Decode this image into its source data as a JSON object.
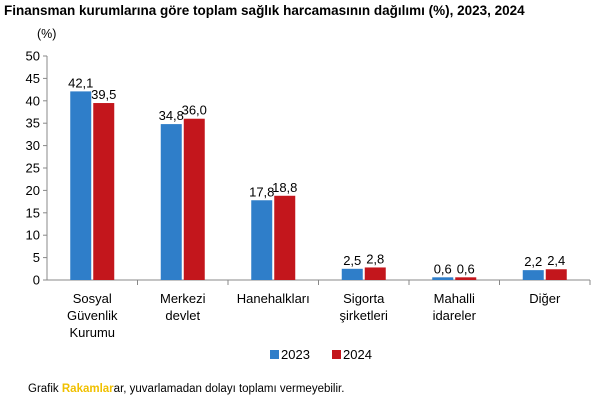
{
  "chart_data": {
    "type": "bar",
    "title": "Finansman kurumlarına göre toplam sağlık harcamasının dağılımı (%), 2023, 2024",
    "ylabel": "(%)",
    "xlabel": "",
    "ylim": [
      0,
      50
    ],
    "yticks": [
      0,
      5,
      10,
      15,
      20,
      25,
      30,
      35,
      40,
      45,
      50
    ],
    "grid": false,
    "legend_position": "bottom-center",
    "categories": [
      [
        "Sosyal",
        "Güvenlik",
        "Kurumu"
      ],
      [
        "Merkezi",
        "devlet"
      ],
      [
        "Hanehalkları"
      ],
      [
        "Sigorta",
        "şirketleri"
      ],
      [
        "Mahalli",
        "idareler"
      ],
      [
        "Diğer"
      ]
    ],
    "series": [
      {
        "name": "2023",
        "color": "#2f7ec9",
        "values": [
          42.1,
          34.8,
          17.8,
          2.5,
          0.6,
          2.2
        ],
        "labels": [
          "42,1",
          "34,8",
          "17,8",
          "2,5",
          "0,6",
          "2,2"
        ]
      },
      {
        "name": "2024",
        "color": "#c3161c",
        "values": [
          39.5,
          36.0,
          18.8,
          2.8,
          0.6,
          2.4
        ],
        "labels": [
          "39,5",
          "36,0",
          "18,8",
          "2,8",
          "0,6",
          "2,4"
        ]
      }
    ]
  },
  "footnote": {
    "prefix": "Grafik",
    "logo_text": "Rakamlar",
    "text": "ar, yuvarlamadan dolayı toplamı vermeyebilir."
  }
}
